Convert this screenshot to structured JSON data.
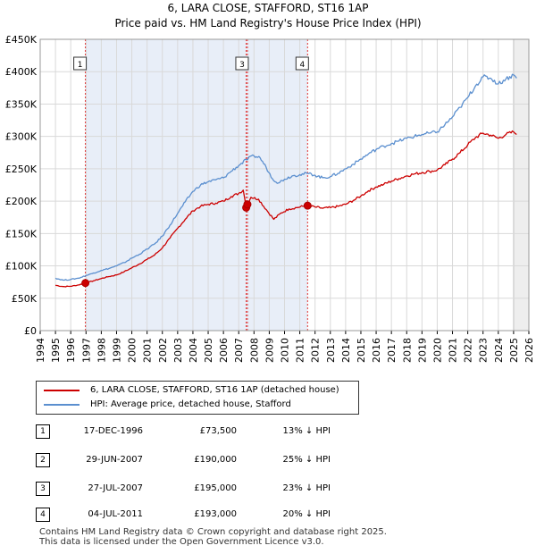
{
  "chart_data": {
    "type": "line",
    "title": "6, LARA CLOSE, STAFFORD, ST16 1AP",
    "subtitle": "Price paid vs. HM Land Registry's House Price Index (HPI)",
    "xlabel": "",
    "ylabel": "",
    "xlim": [
      1994,
      2026
    ],
    "ylim": [
      0,
      450000
    ],
    "x_ticks": [
      "1994",
      "1995",
      "1996",
      "1997",
      "1998",
      "1999",
      "2000",
      "2001",
      "2002",
      "2003",
      "2004",
      "2005",
      "2006",
      "2007",
      "2008",
      "2009",
      "2010",
      "2011",
      "2012",
      "2013",
      "2014",
      "2015",
      "2016",
      "2017",
      "2018",
      "2019",
      "2020",
      "2021",
      "2022",
      "2023",
      "2024",
      "2025",
      "2026"
    ],
    "y_ticks": [
      {
        "value": 0,
        "label": "£0"
      },
      {
        "value": 50000,
        "label": "£50K"
      },
      {
        "value": 100000,
        "label": "£100K"
      },
      {
        "value": 150000,
        "label": "£150K"
      },
      {
        "value": 200000,
        "label": "£200K"
      },
      {
        "value": 250000,
        "label": "£250K"
      },
      {
        "value": 300000,
        "label": "£300K"
      },
      {
        "value": 350000,
        "label": "£350K"
      },
      {
        "value": 400000,
        "label": "£400K"
      },
      {
        "value": 450000,
        "label": "£450K"
      }
    ],
    "grid": true,
    "data_range": [
      1995.0,
      2025.5
    ],
    "future_shading_from": 2025.0,
    "series": [
      {
        "name": "6, LARA CLOSE, STAFFORD, ST16 1AP (detached house)",
        "color": "#cc0000",
        "points": [
          [
            1995.0,
            70000
          ],
          [
            1995.5,
            68000
          ],
          [
            1996.0,
            68500
          ],
          [
            1996.5,
            70500
          ],
          [
            1996.96,
            73500
          ],
          [
            1997.5,
            77000
          ],
          [
            1998.0,
            80500
          ],
          [
            1998.5,
            83500
          ],
          [
            1999.0,
            86000
          ],
          [
            1999.5,
            91000
          ],
          [
            2000.0,
            97000
          ],
          [
            2000.5,
            103000
          ],
          [
            2001.0,
            110000
          ],
          [
            2001.5,
            117000
          ],
          [
            2002.0,
            128000
          ],
          [
            2002.5,
            143000
          ],
          [
            2003.0,
            158000
          ],
          [
            2003.5,
            172000
          ],
          [
            2004.0,
            185000
          ],
          [
            2004.5,
            192000
          ],
          [
            2005.0,
            195000
          ],
          [
            2005.5,
            197000
          ],
          [
            2006.0,
            200000
          ],
          [
            2006.5,
            207000
          ],
          [
            2007.0,
            212000
          ],
          [
            2007.3,
            217000
          ],
          [
            2007.49,
            190000
          ],
          [
            2007.57,
            195000
          ],
          [
            2007.8,
            206000
          ],
          [
            2008.3,
            203000
          ],
          [
            2008.8,
            187000
          ],
          [
            2009.3,
            172000
          ],
          [
            2009.8,
            182000
          ],
          [
            2010.3,
            188000
          ],
          [
            2010.8,
            190000
          ],
          [
            2011.2,
            192000
          ],
          [
            2011.51,
            193000
          ],
          [
            2012.0,
            191000
          ],
          [
            2012.5,
            189000
          ],
          [
            2013.0,
            190000
          ],
          [
            2013.5,
            192000
          ],
          [
            2014.0,
            195000
          ],
          [
            2014.5,
            201000
          ],
          [
            2015.0,
            208000
          ],
          [
            2015.5,
            216000
          ],
          [
            2016.0,
            222000
          ],
          [
            2016.5,
            226000
          ],
          [
            2017.0,
            231000
          ],
          [
            2017.5,
            235000
          ],
          [
            2018.0,
            239000
          ],
          [
            2018.5,
            242000
          ],
          [
            2019.0,
            244000
          ],
          [
            2019.5,
            246000
          ],
          [
            2020.0,
            248000
          ],
          [
            2020.5,
            256000
          ],
          [
            2021.0,
            265000
          ],
          [
            2021.5,
            275000
          ],
          [
            2022.0,
            287000
          ],
          [
            2022.5,
            298000
          ],
          [
            2023.0,
            305000
          ],
          [
            2023.5,
            302000
          ],
          [
            2024.0,
            297000
          ],
          [
            2024.5,
            303000
          ],
          [
            2025.0,
            307000
          ],
          [
            2025.2,
            303000
          ]
        ]
      },
      {
        "name": "HPI: Average price, detached house, Stafford",
        "color": "#5b8fcf",
        "points": [
          [
            1995.0,
            81000
          ],
          [
            1995.5,
            78000
          ],
          [
            1996.0,
            79000
          ],
          [
            1996.5,
            81000
          ],
          [
            1997.0,
            85000
          ],
          [
            1997.5,
            89000
          ],
          [
            1998.0,
            93000
          ],
          [
            1998.5,
            96000
          ],
          [
            1999.0,
            100000
          ],
          [
            1999.5,
            105000
          ],
          [
            2000.0,
            112000
          ],
          [
            2000.5,
            118000
          ],
          [
            2001.0,
            126000
          ],
          [
            2001.5,
            134000
          ],
          [
            2002.0,
            146000
          ],
          [
            2002.5,
            163000
          ],
          [
            2003.0,
            181000
          ],
          [
            2003.5,
            199000
          ],
          [
            2004.0,
            215000
          ],
          [
            2004.5,
            225000
          ],
          [
            2005.0,
            230000
          ],
          [
            2005.5,
            233000
          ],
          [
            2006.0,
            236000
          ],
          [
            2006.5,
            246000
          ],
          [
            2007.0,
            255000
          ],
          [
            2007.5,
            264000
          ],
          [
            2008.0,
            270000
          ],
          [
            2008.4,
            267000
          ],
          [
            2008.8,
            252000
          ],
          [
            2009.2,
            235000
          ],
          [
            2009.6,
            228000
          ],
          [
            2010.0,
            234000
          ],
          [
            2010.5,
            239000
          ],
          [
            2011.0,
            241000
          ],
          [
            2011.5,
            243000
          ],
          [
            2012.0,
            240000
          ],
          [
            2012.5,
            236000
          ],
          [
            2013.0,
            238000
          ],
          [
            2013.5,
            243000
          ],
          [
            2014.0,
            250000
          ],
          [
            2014.5,
            257000
          ],
          [
            2015.0,
            265000
          ],
          [
            2015.5,
            273000
          ],
          [
            2016.0,
            280000
          ],
          [
            2016.5,
            285000
          ],
          [
            2017.0,
            289000
          ],
          [
            2017.5,
            293000
          ],
          [
            2018.0,
            297000
          ],
          [
            2018.5,
            300000
          ],
          [
            2019.0,
            303000
          ],
          [
            2019.5,
            305000
          ],
          [
            2020.0,
            307000
          ],
          [
            2020.5,
            318000
          ],
          [
            2021.0,
            330000
          ],
          [
            2021.5,
            345000
          ],
          [
            2022.0,
            360000
          ],
          [
            2022.5,
            378000
          ],
          [
            2023.0,
            392000
          ],
          [
            2023.5,
            390000
          ],
          [
            2024.0,
            381000
          ],
          [
            2024.5,
            389000
          ],
          [
            2025.0,
            395000
          ],
          [
            2025.2,
            390000
          ]
        ]
      }
    ],
    "markers": [
      {
        "label": "1",
        "x": 1996.96,
        "y": 73500
      },
      {
        "label": "2",
        "x": 2007.49,
        "y": 190000
      },
      {
        "label": "3",
        "x": 2007.57,
        "y": 195000
      },
      {
        "label": "4",
        "x": 2011.51,
        "y": 193000
      }
    ],
    "marker_boxes": [
      "1",
      "3",
      "4"
    ]
  },
  "legend": {
    "property": "6, LARA CLOSE, STAFFORD, ST16 1AP (detached house)",
    "hpi": "HPI: Average price, detached house, Stafford"
  },
  "transactions": [
    {
      "num": "1",
      "date": "17-DEC-1996",
      "price": "£73,500",
      "hpi": "13% ↓ HPI"
    },
    {
      "num": "2",
      "date": "29-JUN-2007",
      "price": "£190,000",
      "hpi": "25% ↓ HPI"
    },
    {
      "num": "3",
      "date": "27-JUL-2007",
      "price": "£195,000",
      "hpi": "23% ↓ HPI"
    },
    {
      "num": "4",
      "date": "04-JUL-2011",
      "price": "£193,000",
      "hpi": "20% ↓ HPI"
    }
  ],
  "footer": {
    "line1": "Contains HM Land Registry data © Crown copyright and database right 2025.",
    "line2": "This data is licensed under the Open Government Licence v3.0."
  },
  "colors": {
    "property_line": "#cc0000",
    "hpi_line": "#5b8fcf",
    "shade": "#e8eef8",
    "grid": "#d9d9d9",
    "vline": "#dd3333"
  }
}
